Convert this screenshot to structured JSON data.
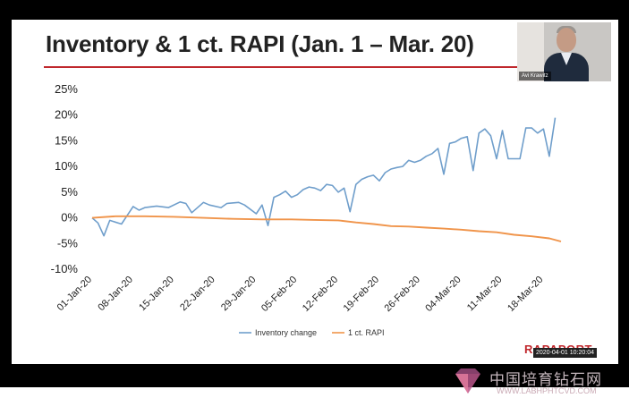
{
  "slide": {
    "title": "Inventory & 1 ct. RAPI (Jan. 1 – Mar. 20)",
    "brand": "RAPAPORT",
    "timestamp": "2020-04-01 10:20:04"
  },
  "video": {
    "name": "Avi Krawitz"
  },
  "watermark": {
    "cn_text": "中国培育钻石网",
    "url": "WWW.LABHPHTCVD.COM"
  },
  "colors": {
    "inventory": "#6f9ecb",
    "rapi": "#f0944a",
    "title_rule": "#c0282d",
    "brand": "#c0282d"
  },
  "chart_data": {
    "type": "line",
    "title": "Inventory & 1 ct. RAPI (Jan. 1 – Mar. 20)",
    "xlabel": "",
    "ylabel": "",
    "ylim": [
      -10,
      25
    ],
    "ytick_values": [
      -10,
      -5,
      0,
      5,
      10,
      15,
      20,
      25
    ],
    "ytick_labels": [
      "-10%",
      "-5%",
      "0%",
      "5%",
      "10%",
      "15%",
      "20%",
      "25%"
    ],
    "xtick_labels": [
      "01-Jan-20",
      "08-Jan-20",
      "15-Jan-20",
      "22-Jan-20",
      "29-Jan-20",
      "05-Feb-20",
      "12-Feb-20",
      "19-Feb-20",
      "26-Feb-20",
      "04-Mar-20",
      "11-Mar-20",
      "18-Mar-20"
    ],
    "grid": false,
    "legend_position": "bottom",
    "series": [
      {
        "name": "Inventory change",
        "x": [
          "2020-01-01",
          "2020-01-02",
          "2020-01-03",
          "2020-01-04",
          "2020-01-06",
          "2020-01-07",
          "2020-01-08",
          "2020-01-09",
          "2020-01-10",
          "2020-01-12",
          "2020-01-14",
          "2020-01-16",
          "2020-01-17",
          "2020-01-18",
          "2020-01-20",
          "2020-01-21",
          "2020-01-23",
          "2020-01-24",
          "2020-01-26",
          "2020-01-27",
          "2020-01-29",
          "2020-01-30",
          "2020-01-31",
          "2020-02-01",
          "2020-02-02",
          "2020-02-03",
          "2020-02-04",
          "2020-02-05",
          "2020-02-06",
          "2020-02-07",
          "2020-02-08",
          "2020-02-09",
          "2020-02-10",
          "2020-02-11",
          "2020-02-12",
          "2020-02-13",
          "2020-02-14",
          "2020-02-15",
          "2020-02-16",
          "2020-02-17",
          "2020-02-18",
          "2020-02-19",
          "2020-02-20",
          "2020-02-21",
          "2020-02-22",
          "2020-02-23",
          "2020-02-24",
          "2020-02-25",
          "2020-02-26",
          "2020-02-27",
          "2020-02-28",
          "2020-02-29",
          "2020-03-01",
          "2020-03-02",
          "2020-03-03",
          "2020-03-04",
          "2020-03-05",
          "2020-03-06",
          "2020-03-07",
          "2020-03-08",
          "2020-03-09",
          "2020-03-10",
          "2020-03-11",
          "2020-03-12",
          "2020-03-13",
          "2020-03-14",
          "2020-03-15",
          "2020-03-16",
          "2020-03-17",
          "2020-03-18",
          "2020-03-19",
          "2020-03-20"
        ],
        "values": [
          0,
          -1,
          -3.5,
          -0.5,
          -1.2,
          0.5,
          2.2,
          1.5,
          2.0,
          2.3,
          2.0,
          3.1,
          2.8,
          1.0,
          3.0,
          2.5,
          2.0,
          2.8,
          3.0,
          2.5,
          0.8,
          2.5,
          -1.5,
          4.0,
          4.5,
          5.2,
          4.0,
          4.5,
          5.5,
          6.0,
          5.8,
          5.3,
          6.5,
          6.3,
          5.0,
          5.8,
          1.2,
          6.5,
          7.5,
          8.0,
          8.3,
          7.2,
          8.8,
          9.5,
          9.8,
          10.0,
          11.2,
          10.8,
          11.2,
          12.0,
          12.5,
          13.5,
          8.5,
          14.5,
          14.8,
          15.5,
          15.8,
          9.2,
          16.5,
          17.3,
          16.0,
          11.5,
          17.0,
          11.5,
          11.5,
          11.5,
          17.5,
          17.5,
          16.5,
          17.3,
          12.0,
          19.5
        ]
      },
      {
        "name": "1 ct. RAPI",
        "x": [
          "2020-01-01",
          "2020-01-05",
          "2020-01-10",
          "2020-01-15",
          "2020-01-20",
          "2020-01-25",
          "2020-01-30",
          "2020-02-04",
          "2020-02-08",
          "2020-02-12",
          "2020-02-15",
          "2020-02-18",
          "2020-02-21",
          "2020-02-24",
          "2020-02-27",
          "2020-03-01",
          "2020-03-04",
          "2020-03-07",
          "2020-03-10",
          "2020-03-13",
          "2020-03-16",
          "2020-03-19",
          "2020-03-21"
        ],
        "values": [
          0,
          0.3,
          0.3,
          0.2,
          0,
          -0.2,
          -0.3,
          -0.3,
          -0.4,
          -0.5,
          -0.9,
          -1.2,
          -1.6,
          -1.7,
          -1.9,
          -2.1,
          -2.3,
          -2.6,
          -2.8,
          -3.3,
          -3.6,
          -4.0,
          -4.6
        ]
      }
    ]
  }
}
